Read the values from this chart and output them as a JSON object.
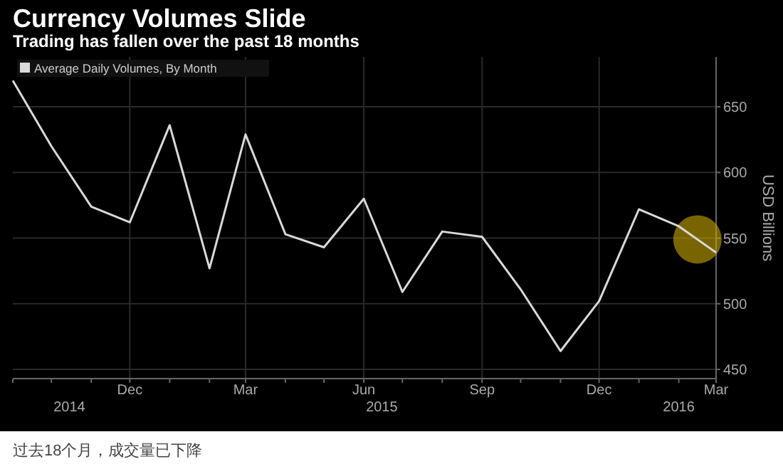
{
  "chart_data": {
    "type": "line",
    "title": "Currency Volumes Slide",
    "subtitle": "Trading has fallen over the past 18 months",
    "ylabel": "USD Billions",
    "annotations": [
      "过去18个月，成交量已下降"
    ],
    "x": [
      "2014-09",
      "2014-10",
      "2014-11",
      "2014-12",
      "2015-01",
      "2015-02",
      "2015-03",
      "2015-04",
      "2015-05",
      "2015-06",
      "2015-07",
      "2015-08",
      "2015-09",
      "2015-10",
      "2015-11",
      "2015-12",
      "2016-01",
      "2016-02",
      "2016-03"
    ],
    "series": [
      {
        "name": "Average Daily Volumes, By Month",
        "color": "#d9d9d9",
        "values": [
          670,
          620,
          574,
          562,
          636,
          527,
          629,
          553,
          543,
          580,
          509,
          555,
          551,
          511,
          464,
          502,
          572,
          559,
          539
        ]
      }
    ],
    "xlim": [
      "2014-09",
      "2016-03"
    ],
    "xticks": [
      {
        "value": "2014-12",
        "label": "Dec"
      },
      {
        "value": "2015-03",
        "label": "Mar"
      },
      {
        "value": "2015-06",
        "label": "Jun"
      },
      {
        "value": "2015-09",
        "label": "Sep"
      },
      {
        "value": "2015-12",
        "label": "Dec"
      },
      {
        "value": "2016-03",
        "label": "Mar"
      }
    ],
    "x2lim": [
      "2014-09",
      "2016-03"
    ],
    "x2ticks": [
      {
        "value": "2014-10-15",
        "label": "2014"
      },
      {
        "value": "2015-06-15",
        "label": "2015"
      },
      {
        "value": "2016-02-01",
        "label": "2016"
      }
    ],
    "ylim": [
      443,
      688
    ],
    "yticks": [
      450,
      500,
      550,
      600,
      650
    ],
    "grid": true,
    "legend": "top left",
    "line_style": "solid",
    "marker": "none"
  }
}
